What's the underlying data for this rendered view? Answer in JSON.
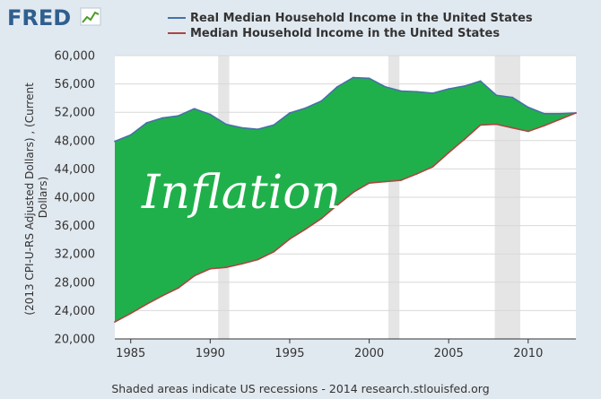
{
  "logo": {
    "text": "FRED",
    "icon": "line-chart-icon"
  },
  "chart_data": {
    "type": "line",
    "title": "",
    "xlabel": "",
    "ylabel": "(2013 CPI-U-RS Adjusted Dollars) , (Current Dollars)",
    "ylim": [
      20000,
      60000
    ],
    "xlim": [
      1984,
      2013
    ],
    "yticks": [
      20000,
      24000,
      28000,
      32000,
      36000,
      40000,
      44000,
      48000,
      52000,
      56000,
      60000
    ],
    "ytick_labels": [
      "20,000",
      "24,000",
      "28,000",
      "32,000",
      "36,000",
      "40,000",
      "44,000",
      "48,000",
      "52,000",
      "56,000",
      "60,000"
    ],
    "xticks": [
      1985,
      1990,
      1995,
      2000,
      2005,
      2010
    ],
    "xtick_labels": [
      "1985",
      "1990",
      "1995",
      "2000",
      "2005",
      "2010"
    ],
    "x": [
      1984,
      1985,
      1986,
      1987,
      1988,
      1989,
      1990,
      1991,
      1992,
      1993,
      1994,
      1995,
      1996,
      1997,
      1998,
      1999,
      2000,
      2001,
      2002,
      2003,
      2004,
      2005,
      2006,
      2007,
      2008,
      2009,
      2010,
      2011,
      2012,
      2013
    ],
    "series": [
      {
        "name": "Real Median Household Income in the United States",
        "color": "#4572a7",
        "values": [
          47900,
          48800,
          50500,
          51200,
          51500,
          52500,
          51700,
          50300,
          49800,
          49600,
          50200,
          51900,
          52600,
          53600,
          55600,
          56900,
          56800,
          55600,
          55000,
          54900,
          54700,
          55300,
          55700,
          56400,
          54400,
          54100,
          52700,
          51800,
          51800,
          51900
        ]
      },
      {
        "name": "Median Household Income in the United States",
        "color": "#aa4643",
        "values": [
          22400,
          23600,
          24900,
          26100,
          27200,
          28900,
          29900,
          30100,
          30600,
          31200,
          32300,
          34100,
          35500,
          37000,
          38900,
          40700,
          42000,
          42200,
          42400,
          43300,
          44300,
          46300,
          48200,
          50200,
          50300,
          49800,
          49300,
          50100,
          51000,
          51900
        ]
      }
    ],
    "fill_between": {
      "color": "#20b04b",
      "label": "Inflation"
    },
    "recessions": [
      {
        "start": 1990.5,
        "end": 1991.2
      },
      {
        "start": 2001.2,
        "end": 2001.9
      },
      {
        "start": 2007.9,
        "end": 2009.5
      }
    ],
    "recession_color": "#e5e5e5",
    "grid": true,
    "legend": "top",
    "annotations": [
      "Inflation"
    ],
    "footer": "Shaded areas indicate US recessions - 2014 research.stlouisfed.org"
  }
}
